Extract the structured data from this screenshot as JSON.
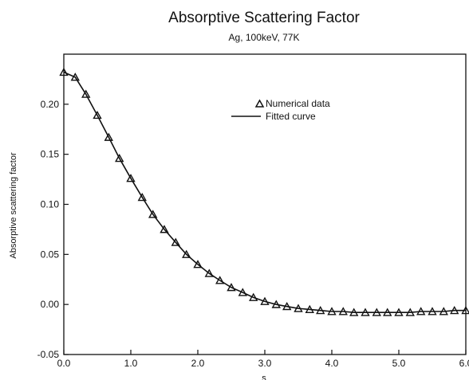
{
  "chart_data": {
    "type": "line",
    "title": "Absorptive Scattering Factor",
    "subtitle": "Ag, 100keV, 77K",
    "xlabel": "s",
    "ylabel": "Absorptive scattering factor",
    "xlim": [
      0.0,
      6.0
    ],
    "ylim": [
      -0.05,
      0.25
    ],
    "x_ticks": [
      "0.0",
      "1.0",
      "2.0",
      "3.0",
      "4.0",
      "5.0",
      "6.0"
    ],
    "y_ticks": [
      "0.20",
      "0.15",
      "0.10",
      "0.05",
      "0.00",
      "-0.05"
    ],
    "y_tick_values": [
      0.2,
      0.15,
      0.1,
      0.05,
      0.0,
      -0.05
    ],
    "grid": false,
    "legend_position": "top-right",
    "series": [
      {
        "name": "Numerical data",
        "marker": "open-triangle",
        "x": [
          0.0,
          0.17,
          0.33,
          0.5,
          0.67,
          0.83,
          1.0,
          1.17,
          1.33,
          1.5,
          1.67,
          1.83,
          2.0,
          2.17,
          2.33,
          2.5,
          2.67,
          2.83,
          3.0,
          3.17,
          3.33,
          3.5,
          3.67,
          3.83,
          4.0,
          4.17,
          4.33,
          4.5,
          4.67,
          4.83,
          5.0,
          5.17,
          5.33,
          5.5,
          5.67,
          5.83,
          6.0
        ],
        "values": [
          0.232,
          0.227,
          0.21,
          0.189,
          0.167,
          0.146,
          0.126,
          0.107,
          0.09,
          0.075,
          0.062,
          0.05,
          0.04,
          0.031,
          0.024,
          0.017,
          0.012,
          0.007,
          0.003,
          0.0,
          -0.002,
          -0.004,
          -0.005,
          -0.006,
          -0.007,
          -0.007,
          -0.008,
          -0.008,
          -0.008,
          -0.008,
          -0.008,
          -0.008,
          -0.007,
          -0.007,
          -0.007,
          -0.006,
          -0.006
        ]
      },
      {
        "name": "Fitted curve",
        "style": "solid-line",
        "x": [
          0.0,
          0.17,
          0.33,
          0.5,
          0.67,
          0.83,
          1.0,
          1.17,
          1.33,
          1.5,
          1.67,
          1.83,
          2.0,
          2.17,
          2.33,
          2.5,
          2.67,
          2.83,
          3.0,
          3.17,
          3.33,
          3.5,
          3.67,
          3.83,
          4.0,
          4.17,
          4.33,
          4.5,
          4.67,
          4.83,
          5.0,
          5.17,
          5.33,
          5.5,
          5.67,
          5.83,
          6.0
        ],
        "values": [
          0.232,
          0.227,
          0.21,
          0.189,
          0.167,
          0.146,
          0.126,
          0.107,
          0.09,
          0.075,
          0.062,
          0.05,
          0.04,
          0.031,
          0.024,
          0.017,
          0.012,
          0.007,
          0.003,
          0.0,
          -0.002,
          -0.004,
          -0.005,
          -0.006,
          -0.007,
          -0.007,
          -0.008,
          -0.008,
          -0.008,
          -0.008,
          -0.008,
          -0.008,
          -0.007,
          -0.007,
          -0.007,
          -0.006,
          -0.006
        ]
      }
    ],
    "colors": {
      "ink": "#111111",
      "background": "#ffffff"
    }
  }
}
